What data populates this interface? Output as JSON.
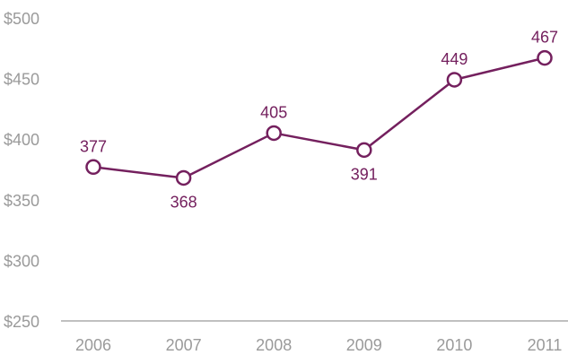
{
  "chart_data": {
    "type": "line",
    "title": "",
    "xlabel": "",
    "ylabel": "",
    "x": [
      "2006",
      "2007",
      "2008",
      "2009",
      "2010",
      "2011"
    ],
    "series": [
      {
        "values": [
          377,
          368,
          405,
          391,
          449,
          467
        ]
      }
    ],
    "data_labels": [
      "377",
      "368",
      "405",
      "391",
      "449",
      "467"
    ],
    "y_ticks": [
      250,
      300,
      350,
      400,
      450,
      500
    ],
    "y_tick_labels": [
      "$250",
      "$300",
      "$350",
      "$400",
      "$450",
      "$500"
    ],
    "ylim": [
      250,
      500
    ],
    "grid": false,
    "legend": "none",
    "colors": {
      "line": "#74205e",
      "axis": "#808080",
      "tick_text": "#9a9a9a"
    }
  }
}
